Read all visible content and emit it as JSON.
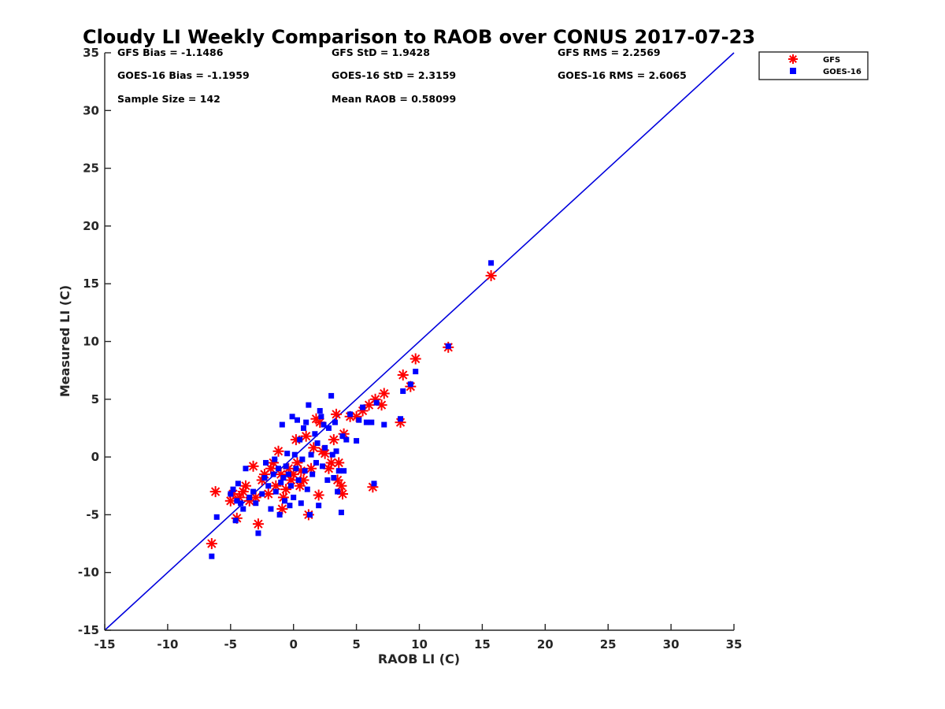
{
  "chart_data": {
    "type": "scatter",
    "title": "Cloudy LI Weekly Comparison to RAOB over CONUS 2017-07-23",
    "xlabel": "RAOB LI (C)",
    "ylabel": "Measured LI (C)",
    "xlim": [
      -15,
      35
    ],
    "ylim": [
      -15,
      35
    ],
    "xticks": [
      "-15",
      "-10",
      "-5",
      "0",
      "5",
      "10",
      "15",
      "20",
      "25",
      "30",
      "35"
    ],
    "yticks": [
      "-15",
      "-10",
      "-5",
      "0",
      "5",
      "10",
      "15",
      "20",
      "25",
      "30",
      "35"
    ],
    "grid": false,
    "legend_position": "top-right outside",
    "one_to_one_line": {
      "from": [
        -15,
        -15
      ],
      "to": [
        35,
        35
      ],
      "color": "#0000dd"
    },
    "stats": [
      "GFS Bias = -1.1486",
      "GFS StD = 1.9428",
      "GFS RMS = 2.2569",
      "GOES-16 Bias = -1.1959",
      "GOES-16 StD = 2.3159",
      "GOES-16 RMS = 2.6065",
      "Sample Size = 142",
      "Mean RAOB = 0.58099"
    ],
    "series": [
      {
        "name": "GFS",
        "marker": "asterisk",
        "color": "#ff0000",
        "points": [
          [
            -6.5,
            -7.5
          ],
          [
            -6.2,
            -3.0
          ],
          [
            -5.0,
            -3.8
          ],
          [
            -4.8,
            -3.2
          ],
          [
            -4.5,
            -5.3
          ],
          [
            -4.3,
            -3.5
          ],
          [
            -4.0,
            -3.0
          ],
          [
            -3.8,
            -2.5
          ],
          [
            -3.5,
            -3.8
          ],
          [
            -3.2,
            -0.8
          ],
          [
            -3.0,
            -3.5
          ],
          [
            -2.8,
            -5.8
          ],
          [
            -2.5,
            -2.0
          ],
          [
            -2.3,
            -1.5
          ],
          [
            -2.0,
            -3.2
          ],
          [
            -1.8,
            -1.0
          ],
          [
            -1.6,
            -0.5
          ],
          [
            -1.4,
            -2.5
          ],
          [
            -1.2,
            0.5
          ],
          [
            -1.0,
            -1.5
          ],
          [
            -0.9,
            -4.5
          ],
          [
            -0.8,
            -3.5
          ],
          [
            -0.6,
            -2.8
          ],
          [
            -0.4,
            -1.0
          ],
          [
            -0.2,
            -2.0
          ],
          [
            0.0,
            -1.5
          ],
          [
            0.2,
            1.5
          ],
          [
            0.3,
            -0.5
          ],
          [
            0.5,
            -2.5
          ],
          [
            0.6,
            -1.2
          ],
          [
            0.8,
            -2.0
          ],
          [
            1.0,
            1.8
          ],
          [
            1.2,
            -5.0
          ],
          [
            1.4,
            -1.0
          ],
          [
            1.6,
            0.8
          ],
          [
            1.8,
            3.3
          ],
          [
            2.0,
            -3.3
          ],
          [
            2.1,
            3.0
          ],
          [
            2.3,
            0.5
          ],
          [
            2.5,
            0.3
          ],
          [
            2.8,
            -1.0
          ],
          [
            3.0,
            -0.5
          ],
          [
            3.2,
            1.5
          ],
          [
            3.4,
            3.7
          ],
          [
            3.5,
            -2.0
          ],
          [
            3.6,
            -0.5
          ],
          [
            3.8,
            -2.5
          ],
          [
            3.9,
            -3.2
          ],
          [
            4.0,
            2.0
          ],
          [
            4.5,
            3.5
          ],
          [
            5.0,
            3.5
          ],
          [
            5.5,
            4.0
          ],
          [
            6.0,
            4.5
          ],
          [
            6.3,
            -2.6
          ],
          [
            6.5,
            5.0
          ],
          [
            7.0,
            4.5
          ],
          [
            7.2,
            5.5
          ],
          [
            8.5,
            3.0
          ],
          [
            8.7,
            7.1
          ],
          [
            9.3,
            6.1
          ],
          [
            9.7,
            8.5
          ],
          [
            12.3,
            9.5
          ],
          [
            15.7,
            15.7
          ]
        ]
      },
      {
        "name": "GOES-16",
        "marker": "square",
        "color": "#0000ff",
        "points": [
          [
            -6.5,
            -8.6
          ],
          [
            -6.1,
            -5.2
          ],
          [
            -5.0,
            -3.2
          ],
          [
            -4.8,
            -2.8
          ],
          [
            -4.6,
            -5.5
          ],
          [
            -4.5,
            -3.8
          ],
          [
            -4.4,
            -2.3
          ],
          [
            -4.2,
            -4.0
          ],
          [
            -4.0,
            -4.5
          ],
          [
            -3.8,
            -1.0
          ],
          [
            -3.5,
            -3.5
          ],
          [
            -3.2,
            -3.0
          ],
          [
            -3.0,
            -4.0
          ],
          [
            -2.8,
            -6.6
          ],
          [
            -2.5,
            -3.2
          ],
          [
            -2.3,
            -1.8
          ],
          [
            -2.2,
            -0.5
          ],
          [
            -2.0,
            -2.5
          ],
          [
            -1.8,
            -4.5
          ],
          [
            -1.6,
            -1.5
          ],
          [
            -1.5,
            -0.2
          ],
          [
            -1.4,
            -3.0
          ],
          [
            -1.2,
            -1.0
          ],
          [
            -1.1,
            -5.0
          ],
          [
            -1.0,
            -2.2
          ],
          [
            -0.9,
            2.8
          ],
          [
            -0.8,
            -1.8
          ],
          [
            -0.7,
            -3.8
          ],
          [
            -0.6,
            -0.8
          ],
          [
            -0.5,
            0.3
          ],
          [
            -0.4,
            -1.5
          ],
          [
            -0.3,
            -4.2
          ],
          [
            -0.2,
            -2.5
          ],
          [
            -0.1,
            3.5
          ],
          [
            0.0,
            -3.5
          ],
          [
            0.1,
            0.2
          ],
          [
            0.2,
            -1.0
          ],
          [
            0.3,
            3.2
          ],
          [
            0.4,
            -2.0
          ],
          [
            0.5,
            1.5
          ],
          [
            0.6,
            -4.0
          ],
          [
            0.7,
            -0.2
          ],
          [
            0.8,
            2.5
          ],
          [
            0.9,
            -1.2
          ],
          [
            1.0,
            3.0
          ],
          [
            1.1,
            -2.8
          ],
          [
            1.2,
            4.5
          ],
          [
            1.3,
            -5.0
          ],
          [
            1.4,
            0.2
          ],
          [
            1.5,
            -1.5
          ],
          [
            1.7,
            2.0
          ],
          [
            1.8,
            -0.5
          ],
          [
            1.9,
            1.2
          ],
          [
            2.0,
            -4.2
          ],
          [
            2.1,
            4.0
          ],
          [
            2.2,
            3.5
          ],
          [
            2.3,
            -0.8
          ],
          [
            2.4,
            2.8
          ],
          [
            2.5,
            0.8
          ],
          [
            2.7,
            -2.0
          ],
          [
            2.8,
            2.5
          ],
          [
            3.0,
            5.3
          ],
          [
            3.1,
            0.2
          ],
          [
            3.2,
            -1.8
          ],
          [
            3.3,
            3.0
          ],
          [
            3.4,
            0.5
          ],
          [
            3.5,
            -3.0
          ],
          [
            3.6,
            -1.2
          ],
          [
            3.8,
            -4.8
          ],
          [
            3.9,
            1.8
          ],
          [
            4.0,
            -1.2
          ],
          [
            4.2,
            1.5
          ],
          [
            4.5,
            3.7
          ],
          [
            5.0,
            1.4
          ],
          [
            5.2,
            3.2
          ],
          [
            5.5,
            4.3
          ],
          [
            5.8,
            3.0
          ],
          [
            6.2,
            3.0
          ],
          [
            6.4,
            -2.3
          ],
          [
            6.6,
            4.7
          ],
          [
            7.2,
            2.8
          ],
          [
            8.5,
            3.3
          ],
          [
            8.7,
            5.7
          ],
          [
            9.3,
            6.3
          ],
          [
            9.7,
            7.4
          ],
          [
            12.3,
            9.6
          ],
          [
            15.7,
            16.8
          ]
        ]
      }
    ]
  }
}
